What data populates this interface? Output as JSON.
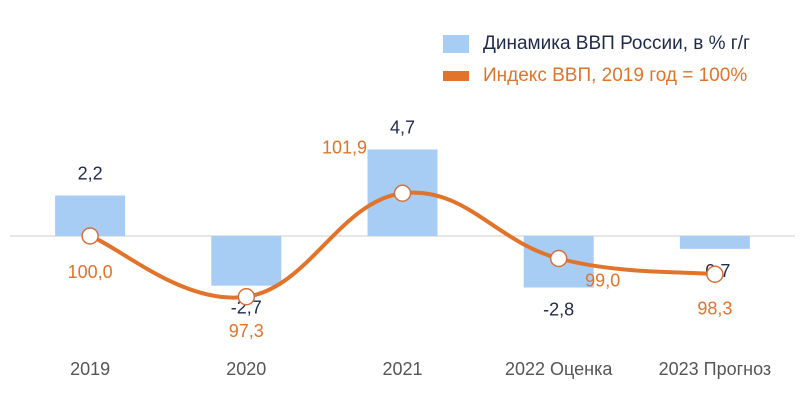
{
  "chart_data": {
    "type": "bar",
    "categories": [
      "2019",
      "2020",
      "2021",
      "2022 Оценка",
      "2023 Прогноз"
    ],
    "series": [
      {
        "name": "Динамика ВВП России, в % г/г",
        "type": "bar",
        "values": [
          2.2,
          -2.7,
          4.7,
          -2.8,
          -0.7
        ],
        "labels": [
          "2,2",
          "-2,7",
          "4,7",
          "-2,8",
          "-0,7"
        ],
        "color": "#a7cdf4",
        "label_color": "#1f2a4a"
      },
      {
        "name": "Индекс ВВП, 2019 год = 100%",
        "type": "line",
        "values": [
          100.0,
          97.3,
          101.9,
          99.0,
          98.3
        ],
        "labels": [
          "100,0",
          "97,3",
          "101,9",
          "99,0",
          "98,3"
        ],
        "color": "#e2732a"
      }
    ],
    "legend_position": "top-right",
    "grid": false,
    "axis_color": "#cccccc"
  }
}
